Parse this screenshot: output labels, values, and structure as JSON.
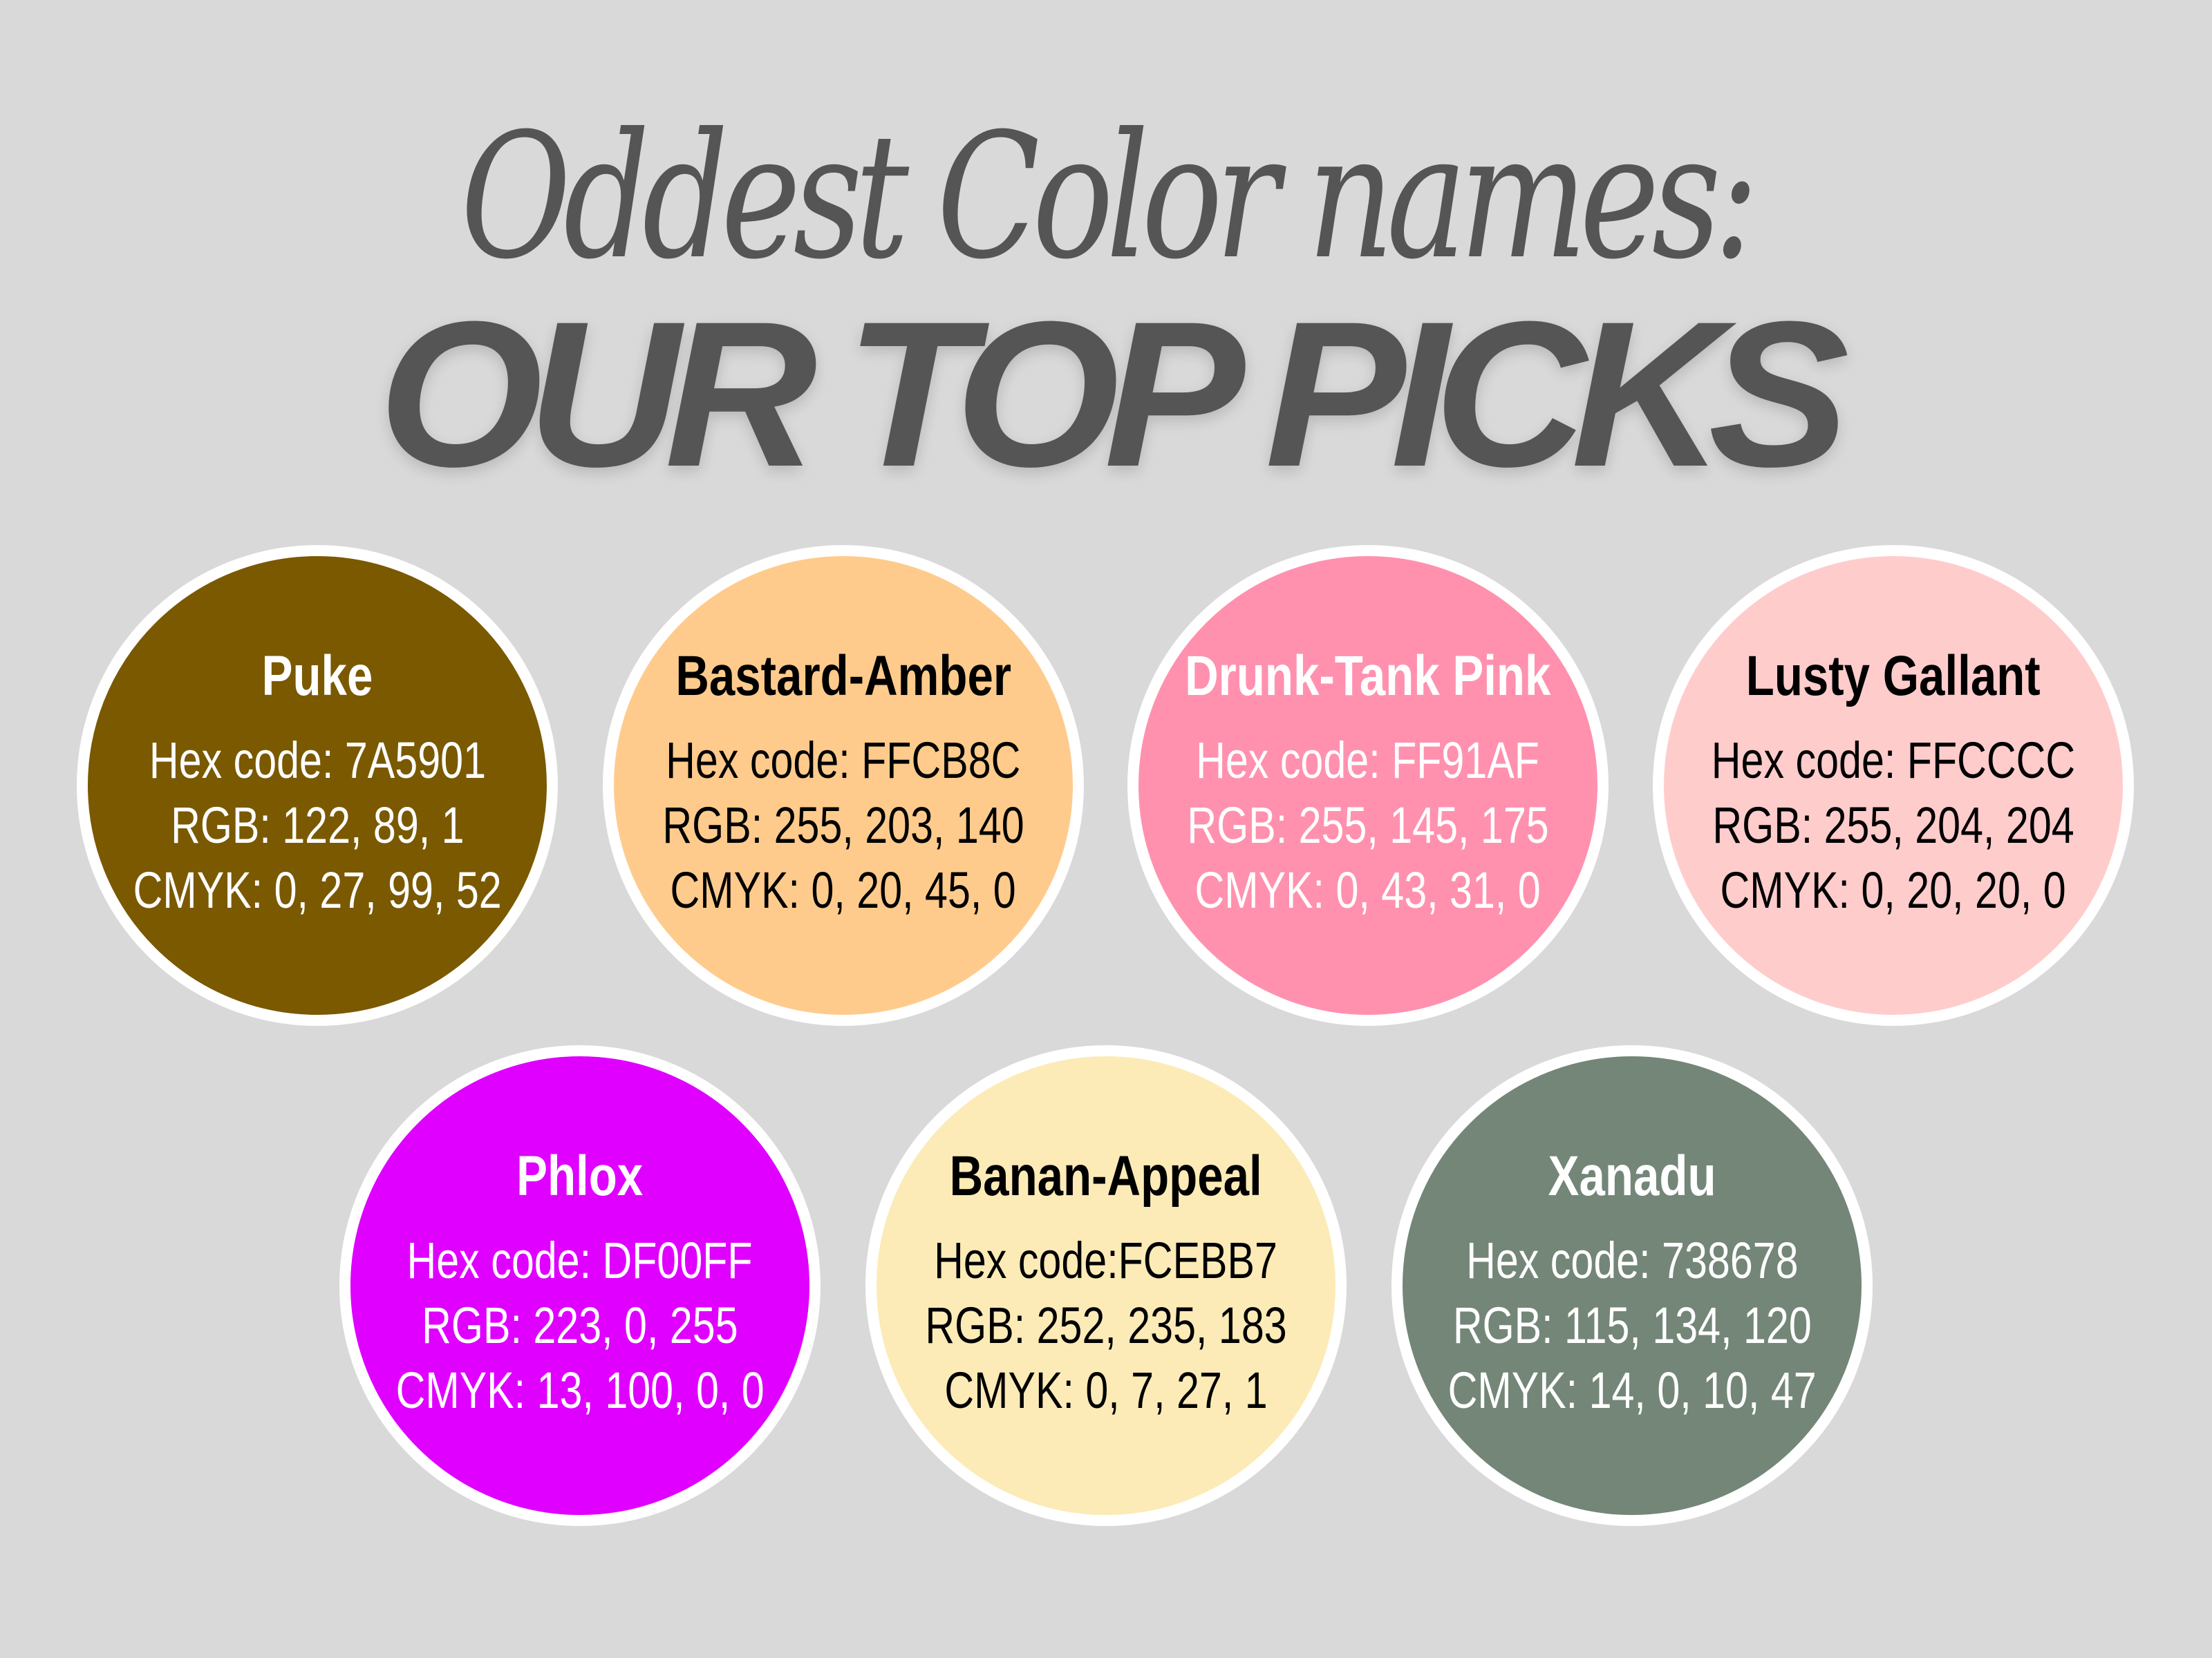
{
  "title": {
    "line1": "Oddest Color names:",
    "line2": "OUR TOP PICKS",
    "color": "#555555"
  },
  "background": "#d9d9d9",
  "colors": [
    {
      "name": "Puke",
      "hex": "Hex code: 7A5901",
      "rgb": "RGB: 122, 89, 1",
      "cmyk": "CMYK: 0, 27, 99, 52",
      "fill": "#7A5901",
      "text_color": "#ffffff"
    },
    {
      "name": "Bastard-Amber",
      "hex": "Hex code: FFCB8C",
      "rgb": "RGB: 255, 203, 140",
      "cmyk": "CMYK: 0, 20, 45, 0",
      "fill": "#FFCB8C",
      "text_color": "#000000"
    },
    {
      "name": "Drunk-Tank Pink",
      "hex": "Hex code: FF91AF",
      "rgb": "RGB: 255, 145, 175",
      "cmyk": "CMYK: 0, 43, 31, 0",
      "fill": "#FF91AF",
      "text_color": "#ffffff"
    },
    {
      "name": "Lusty Gallant",
      "hex": "Hex code: FFCCCC",
      "rgb": "RGB: 255, 204, 204",
      "cmyk": "CMYK: 0, 20, 20, 0",
      "fill": "#FFCCCC",
      "text_color": "#000000"
    },
    {
      "name": "Phlox",
      "hex": "Hex code: DF00FF",
      "rgb": "RGB: 223, 0, 255",
      "cmyk": "CMYK: 13, 100, 0, 0",
      "fill": "#DF00FF",
      "text_color": "#ffffff"
    },
    {
      "name": "Banan-Appeal",
      "hex": "Hex code:FCEBB7",
      "rgb": "RGB: 252, 235, 183",
      "cmyk": "CMYK: 0, 7, 27, 1",
      "fill": "#FCEBB7",
      "text_color": "#000000"
    },
    {
      "name": "Xanadu",
      "hex": "Hex code: 738678",
      "rgb": "RGB: 115, 134, 120",
      "cmyk": "CMYK: 14, 0, 10, 47",
      "fill": "#738678",
      "text_color": "#ffffff"
    }
  ]
}
